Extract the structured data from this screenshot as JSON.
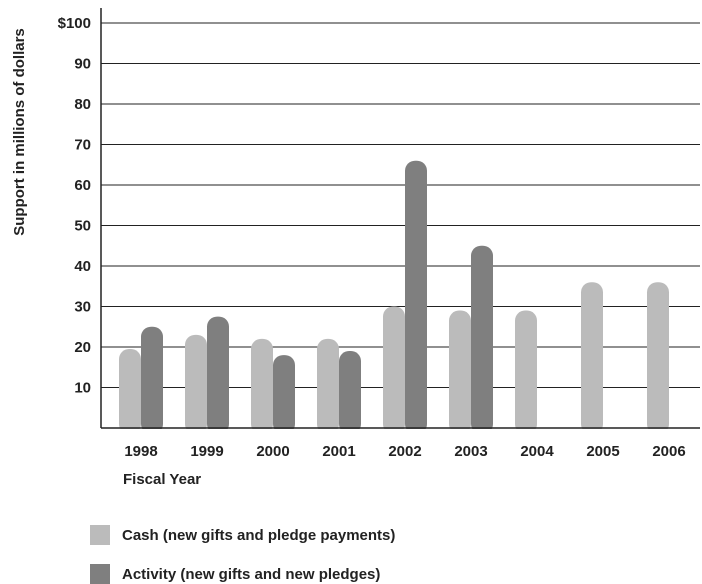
{
  "chart_data": {
    "type": "bar",
    "title": "",
    "xlabel": "Fiscal Year",
    "ylabel": "Support in millions of dollars",
    "ylim": [
      0,
      100
    ],
    "yticks": [
      "10",
      "20",
      "30",
      "40",
      "50",
      "60",
      "70",
      "80",
      "90",
      "$100"
    ],
    "ytick_values": [
      10,
      20,
      30,
      40,
      50,
      60,
      70,
      80,
      90,
      100
    ],
    "categories": [
      "1998",
      "1999",
      "2000",
      "2001",
      "2002",
      "2003",
      "2004",
      "2005",
      "2006"
    ],
    "series": [
      {
        "name": "Cash (new gifts and pledge payments)",
        "color": "#bbbbbb",
        "values": [
          19.5,
          23,
          22,
          22,
          30,
          29,
          29,
          36,
          36
        ]
      },
      {
        "name": "Activity (new gifts and new pledges)",
        "color": "#7f7f7f",
        "values": [
          25,
          27.5,
          18,
          19,
          66,
          45,
          null,
          null,
          null
        ]
      }
    ],
    "grid": true,
    "legend_position": "bottom-left"
  }
}
